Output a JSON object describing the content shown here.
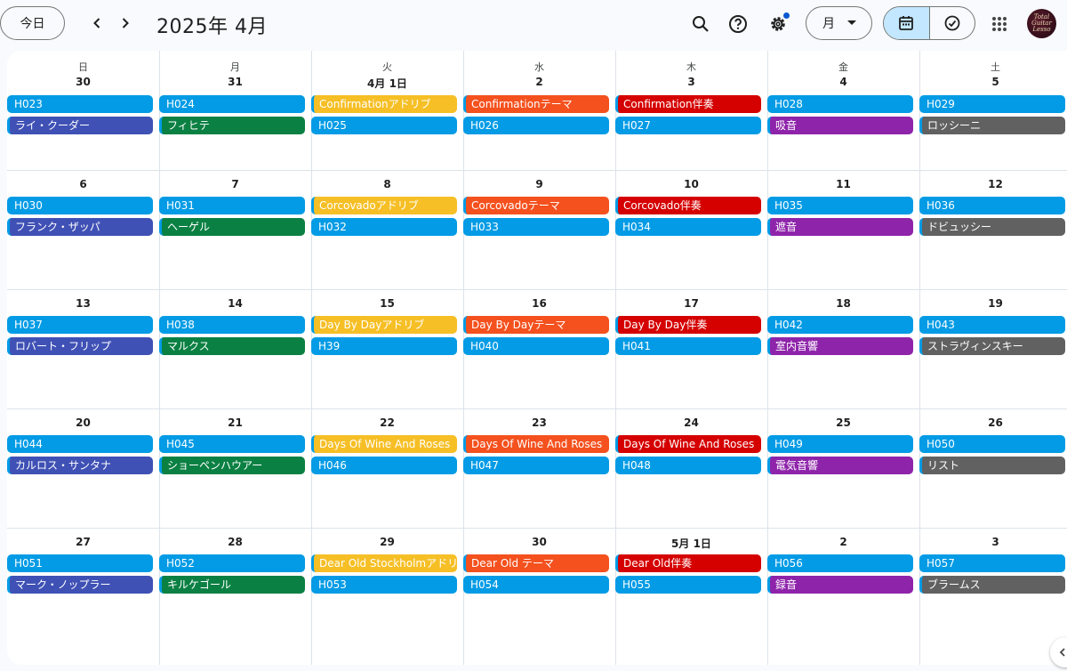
{
  "header": {
    "today_label": "今日",
    "title": "2025年 4月",
    "view_label": "月"
  },
  "weekdays": [
    "日",
    "月",
    "火",
    "水",
    "木",
    "金",
    "土"
  ],
  "weeks": [
    {
      "dates": [
        "30",
        "31",
        "4月 1日",
        "2",
        "3",
        "4",
        "5"
      ],
      "events": [
        [
          {
            "t": "H023",
            "c": "blue"
          },
          {
            "t": "ライ・クーダー",
            "c": "indigo"
          }
        ],
        [
          {
            "t": "H024",
            "c": "blue"
          },
          {
            "t": "フィヒテ",
            "c": "green"
          }
        ],
        [
          {
            "t": "Confirmationアドリブ",
            "c": "yellow"
          },
          {
            "t": "H025",
            "c": "blue"
          }
        ],
        [
          {
            "t": "Confirmationテーマ",
            "c": "orange"
          },
          {
            "t": "H026",
            "c": "blue"
          }
        ],
        [
          {
            "t": "Confirmation伴奏",
            "c": "red"
          },
          {
            "t": "H027",
            "c": "blue"
          }
        ],
        [
          {
            "t": "H028",
            "c": "blue"
          },
          {
            "t": "吸音",
            "c": "purple"
          }
        ],
        [
          {
            "t": "H029",
            "c": "blue"
          },
          {
            "t": "ロッシーニ",
            "c": "gray"
          }
        ]
      ]
    },
    {
      "dates": [
        "6",
        "7",
        "8",
        "9",
        "10",
        "11",
        "12"
      ],
      "events": [
        [
          {
            "t": "H030",
            "c": "blue"
          },
          {
            "t": "フランク・ザッパ",
            "c": "indigo"
          }
        ],
        [
          {
            "t": "H031",
            "c": "blue"
          },
          {
            "t": "ヘーゲル",
            "c": "green"
          }
        ],
        [
          {
            "t": "Corcovadoアドリブ",
            "c": "yellow"
          },
          {
            "t": "H032",
            "c": "blue"
          }
        ],
        [
          {
            "t": "Corcovadoテーマ",
            "c": "orange"
          },
          {
            "t": "H033",
            "c": "blue"
          }
        ],
        [
          {
            "t": "Corcovado伴奏",
            "c": "red"
          },
          {
            "t": "H034",
            "c": "blue"
          }
        ],
        [
          {
            "t": "H035",
            "c": "blue"
          },
          {
            "t": "遮音",
            "c": "purple"
          }
        ],
        [
          {
            "t": "H036",
            "c": "blue"
          },
          {
            "t": "ドビュッシー",
            "c": "gray"
          }
        ]
      ]
    },
    {
      "dates": [
        "13",
        "14",
        "15",
        "16",
        "17",
        "18",
        "19"
      ],
      "events": [
        [
          {
            "t": "H037",
            "c": "blue"
          },
          {
            "t": "ロバート・フリップ",
            "c": "indigo"
          }
        ],
        [
          {
            "t": "H038",
            "c": "blue"
          },
          {
            "t": "マルクス",
            "c": "green"
          }
        ],
        [
          {
            "t": "Day By Dayアドリブ",
            "c": "yellow"
          },
          {
            "t": "H39",
            "c": "blue"
          }
        ],
        [
          {
            "t": "Day By Dayテーマ",
            "c": "orange"
          },
          {
            "t": "H040",
            "c": "blue"
          }
        ],
        [
          {
            "t": "Day By Day伴奏",
            "c": "red"
          },
          {
            "t": "H041",
            "c": "blue"
          }
        ],
        [
          {
            "t": "H042",
            "c": "blue"
          },
          {
            "t": "室内音響",
            "c": "purple"
          }
        ],
        [
          {
            "t": "H043",
            "c": "blue"
          },
          {
            "t": "ストラヴィンスキー",
            "c": "gray"
          }
        ]
      ]
    },
    {
      "dates": [
        "20",
        "21",
        "22",
        "23",
        "24",
        "25",
        "26"
      ],
      "events": [
        [
          {
            "t": "H044",
            "c": "blue"
          },
          {
            "t": "カルロス・サンタナ",
            "c": "indigo"
          }
        ],
        [
          {
            "t": "H045",
            "c": "blue"
          },
          {
            "t": "ショーペンハウアー",
            "c": "green"
          }
        ],
        [
          {
            "t": "Days Of Wine And Roses",
            "c": "yellow"
          },
          {
            "t": "H046",
            "c": "blue"
          }
        ],
        [
          {
            "t": "Days Of Wine And Roses",
            "c": "orange"
          },
          {
            "t": "H047",
            "c": "blue"
          }
        ],
        [
          {
            "t": "Days Of Wine And Roses",
            "c": "red"
          },
          {
            "t": "H048",
            "c": "blue"
          }
        ],
        [
          {
            "t": "H049",
            "c": "blue"
          },
          {
            "t": "電気音響",
            "c": "purple"
          }
        ],
        [
          {
            "t": "H050",
            "c": "blue"
          },
          {
            "t": "リスト",
            "c": "gray"
          }
        ]
      ]
    },
    {
      "dates": [
        "27",
        "28",
        "29",
        "30",
        "5月 1日",
        "2",
        "3"
      ],
      "events": [
        [
          {
            "t": "H051",
            "c": "blue"
          },
          {
            "t": "マーク・ノップラー",
            "c": "indigo"
          }
        ],
        [
          {
            "t": "H052",
            "c": "blue"
          },
          {
            "t": "キルケゴール",
            "c": "green"
          }
        ],
        [
          {
            "t": "Dear Old Stockholmアドリブ",
            "c": "yellow"
          },
          {
            "t": "H053",
            "c": "blue"
          }
        ],
        [
          {
            "t": "Dear Old テーマ",
            "c": "orange"
          },
          {
            "t": "H054",
            "c": "blue"
          }
        ],
        [
          {
            "t": "Dear Old伴奏",
            "c": "red"
          },
          {
            "t": "H055",
            "c": "blue"
          }
        ],
        [
          {
            "t": "H056",
            "c": "blue"
          },
          {
            "t": "録音",
            "c": "purple"
          }
        ],
        [
          {
            "t": "H057",
            "c": "blue"
          },
          {
            "t": "ブラームス",
            "c": "gray"
          }
        ]
      ]
    }
  ],
  "icons": {
    "prev": "chevron-left-icon",
    "next": "chevron-right-icon",
    "search": "search-icon",
    "help": "help-icon",
    "settings": "gear-icon",
    "calendar": "calendar-icon",
    "tasks": "check-circle-icon",
    "apps": "apps-grid-icon"
  },
  "avatar_text": [
    "Total",
    "Guitar",
    "Lesso"
  ],
  "colors": {
    "blue": "#039be5",
    "indigo": "#3f51b5",
    "green": "#0b8043",
    "yellow": "#f6bf26",
    "orange": "#f4511e",
    "red": "#d50000",
    "purple": "#8e24aa",
    "gray": "#616161",
    "accent": "#c2e7ff"
  }
}
